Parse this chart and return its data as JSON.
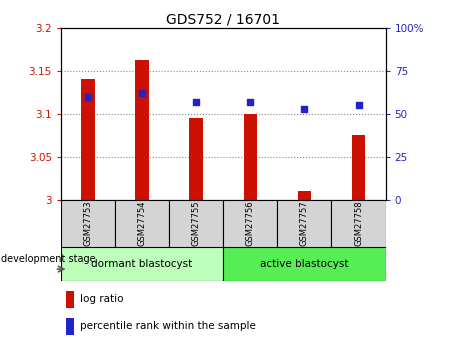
{
  "title": "GDS752 / 16701",
  "samples": [
    "GSM27753",
    "GSM27754",
    "GSM27755",
    "GSM27756",
    "GSM27757",
    "GSM27758"
  ],
  "log_ratio": [
    3.14,
    3.163,
    3.095,
    3.1,
    3.01,
    3.075
  ],
  "percentile_rank": [
    60,
    62,
    57,
    57,
    53,
    55
  ],
  "bar_base": 3.0,
  "ylim_left": [
    3.0,
    3.2
  ],
  "ylim_right": [
    0,
    100
  ],
  "yticks_left": [
    3.0,
    3.05,
    3.1,
    3.15,
    3.2
  ],
  "yticks_right": [
    0,
    25,
    50,
    75,
    100
  ],
  "ytick_labels_left": [
    "3",
    "3.05",
    "3.1",
    "3.15",
    "3.2"
  ],
  "ytick_labels_right": [
    "0",
    "25",
    "50",
    "75",
    "100%"
  ],
  "bar_color": "#cc1100",
  "dot_color": "#2222cc",
  "group1_label": "dormant blastocyst",
  "group2_label": "active blastocyst",
  "group1_indices": [
    0,
    1,
    2
  ],
  "group2_indices": [
    3,
    4,
    5
  ],
  "group1_color": "#bbffbb",
  "group2_color": "#55ee55",
  "stage_label": "development stage",
  "legend_log_ratio": "log ratio",
  "legend_percentile": "percentile rank within the sample",
  "grid_color": "#888888",
  "bar_width": 0.25,
  "dot_size": 22,
  "label_bg": "#d4d4d4"
}
